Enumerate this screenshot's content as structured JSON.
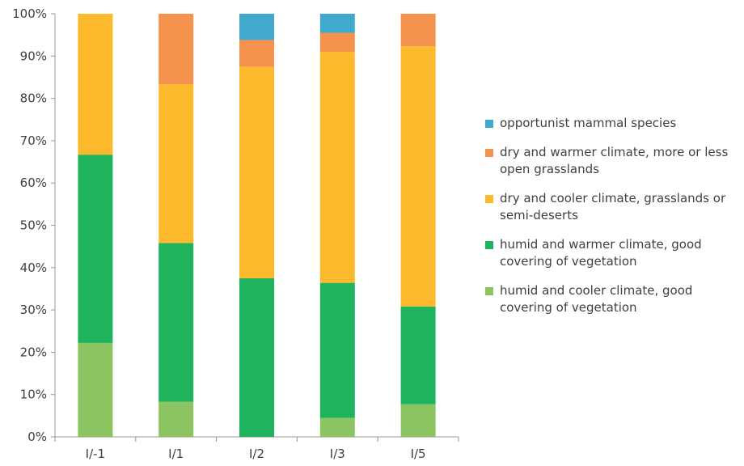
{
  "chart_data": {
    "type": "bar",
    "stacked": true,
    "categories": [
      "I/-1",
      "I/1",
      "I/2",
      "I/3",
      "I/5"
    ],
    "ylim": [
      0,
      100
    ],
    "y_ticks": [
      "0%",
      "10%",
      "20%",
      "30%",
      "40%",
      "50%",
      "60%",
      "70%",
      "80%",
      "90%",
      "100%"
    ],
    "grid": false,
    "legend_position": "right",
    "series": [
      {
        "name": "humid and cooler climate, good covering of vegetation",
        "color": "#8cc462",
        "values": [
          22.2,
          8.3,
          0,
          4.5,
          7.7
        ]
      },
      {
        "name": "humid and warmer climate, good covering of vegetation",
        "color": "#1fb35e",
        "values": [
          44.5,
          37.5,
          37.5,
          31.9,
          23.1
        ]
      },
      {
        "name": "dry and cooler climate, grasslands or semi-deserts",
        "color": "#fdb92c",
        "values": [
          33.3,
          37.5,
          50.0,
          54.6,
          61.5
        ]
      },
      {
        "name": "dry and warmer climate, more or less open grasslands",
        "color": "#f5934e",
        "values": [
          0,
          16.7,
          6.3,
          4.5,
          7.7
        ]
      },
      {
        "name": "opportunist mammal species",
        "color": "#41a9cc",
        "values": [
          0,
          0,
          6.2,
          4.5,
          0
        ]
      }
    ]
  }
}
